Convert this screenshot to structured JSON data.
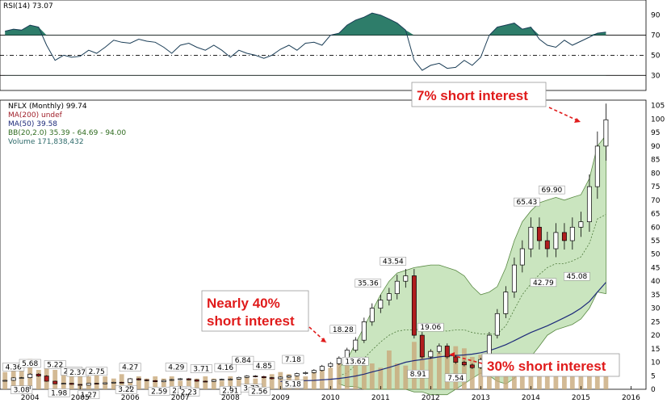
{
  "chart_data": [
    {
      "type": "line",
      "name": "RSI(14)",
      "legend": "RSI(14) 73.07",
      "ylim": [
        15,
        105
      ],
      "yticks": [
        30,
        50,
        70,
        90
      ],
      "reference_lines": [
        30,
        50,
        70
      ],
      "x": [
        2003.5,
        2003.67,
        2003.83,
        2004.0,
        2004.17,
        2004.33,
        2004.5,
        2004.67,
        2004.83,
        2005.0,
        2005.17,
        2005.33,
        2005.5,
        2005.67,
        2005.83,
        2006.0,
        2006.17,
        2006.33,
        2006.5,
        2006.67,
        2006.83,
        2007.0,
        2007.17,
        2007.33,
        2007.5,
        2007.67,
        2007.83,
        2008.0,
        2008.17,
        2008.33,
        2008.5,
        2008.67,
        2008.83,
        2009.0,
        2009.17,
        2009.33,
        2009.5,
        2009.67,
        2009.83,
        2010.0,
        2010.17,
        2010.33,
        2010.5,
        2010.67,
        2010.83,
        2011.0,
        2011.17,
        2011.33,
        2011.5,
        2011.67,
        2011.83,
        2012.0,
        2012.17,
        2012.33,
        2012.5,
        2012.67,
        2012.83,
        2013.0,
        2013.17,
        2013.33,
        2013.5,
        2013.67,
        2013.83,
        2014.0,
        2014.17,
        2014.33,
        2014.5,
        2014.67,
        2014.83,
        2015.0,
        2015.17,
        2015.33,
        2015.5
      ],
      "values": [
        74,
        76,
        75,
        80,
        78,
        60,
        45,
        50,
        48,
        49,
        55,
        52,
        58,
        65,
        63,
        62,
        66,
        64,
        63,
        58,
        52,
        60,
        62,
        58,
        55,
        60,
        55,
        48,
        55,
        52,
        50,
        47,
        50,
        56,
        60,
        55,
        62,
        63,
        60,
        70,
        72,
        80,
        85,
        88,
        92,
        90,
        86,
        82,
        75,
        45,
        35,
        40,
        42,
        37,
        38,
        45,
        40,
        48,
        70,
        78,
        80,
        82,
        76,
        78,
        66,
        60,
        58,
        65,
        60,
        64,
        68,
        72,
        73.07
      ]
    },
    {
      "type": "bar",
      "name": "NFLX (Monthly)",
      "legend": [
        "NFLX (Monthly) 99.74",
        "MA(200) undef",
        "MA(50) 39.58",
        "BB(20,2.0) 35.39 - 64.69 - 94.00",
        "Volume 171,838,432"
      ],
      "ylim": [
        0,
        107
      ],
      "yticks": [
        0,
        5,
        10,
        15,
        20,
        25,
        30,
        35,
        40,
        45,
        50,
        55,
        60,
        65,
        70,
        75,
        80,
        85,
        90,
        95,
        100,
        105
      ],
      "xlabels": [
        "2004",
        "2005",
        "2006",
        "2007",
        "2008",
        "2009",
        "2010",
        "2011",
        "2012",
        "2013",
        "2014",
        "2015",
        "2016"
      ],
      "xlabel_values": [
        2004,
        2005,
        2006,
        2007,
        2008,
        2009,
        2010,
        2011,
        2012,
        2013,
        2014,
        2015,
        2016
      ],
      "price_x": [
        2003.5,
        2003.67,
        2003.83,
        2004.0,
        2004.17,
        2004.33,
        2004.5,
        2004.67,
        2004.83,
        2005.0,
        2005.17,
        2005.33,
        2005.5,
        2005.67,
        2005.83,
        2006.0,
        2006.17,
        2006.33,
        2006.5,
        2006.67,
        2006.83,
        2007.0,
        2007.17,
        2007.33,
        2007.5,
        2007.67,
        2007.83,
        2008.0,
        2008.17,
        2008.33,
        2008.5,
        2008.67,
        2008.83,
        2009.0,
        2009.17,
        2009.33,
        2009.5,
        2009.67,
        2009.83,
        2010.0,
        2010.17,
        2010.33,
        2010.5,
        2010.67,
        2010.83,
        2011.0,
        2011.17,
        2011.33,
        2011.5,
        2011.67,
        2011.83,
        2012.0,
        2012.17,
        2012.33,
        2012.5,
        2012.67,
        2012.83,
        2013.0,
        2013.17,
        2013.33,
        2013.5,
        2013.67,
        2013.83,
        2014.0,
        2014.17,
        2014.33,
        2014.5,
        2014.67,
        2014.83,
        2015.0,
        2015.17,
        2015.33,
        2015.5
      ],
      "price_values": [
        3.3,
        4.2,
        4.3,
        5.6,
        4.9,
        3.0,
        2.0,
        2.2,
        1.8,
        1.5,
        2.2,
        2.0,
        2.4,
        2.6,
        2.5,
        3.9,
        3.5,
        3.2,
        2.8,
        3.3,
        3.6,
        3.9,
        3.5,
        3.0,
        2.9,
        3.5,
        3.7,
        3.8,
        4.4,
        4.9,
        4.7,
        4.3,
        3.9,
        4.5,
        5.0,
        5.8,
        6.2,
        7.0,
        8.5,
        9.5,
        11.5,
        14.5,
        18.2,
        25,
        30,
        33,
        35.4,
        40,
        42,
        20,
        12,
        14,
        16,
        12,
        10,
        9,
        8,
        11,
        20,
        28,
        36,
        46,
        52,
        60,
        55,
        52,
        58,
        55,
        60,
        62,
        75,
        90,
        99.74
      ],
      "volume": [
        8,
        12,
        10,
        14,
        9,
        10,
        9,
        7,
        8,
        9,
        6,
        7,
        6,
        5,
        7,
        5,
        6,
        5,
        6,
        5,
        6,
        4,
        5,
        5,
        6,
        5,
        4,
        6,
        5,
        6,
        5,
        6,
        7,
        8,
        7,
        6,
        6,
        8,
        9,
        10,
        12,
        14,
        13,
        11,
        12,
        10,
        18,
        12,
        11,
        22,
        21,
        18,
        17,
        19,
        20,
        19,
        15,
        16,
        21,
        16,
        13,
        15,
        12,
        13,
        11,
        12,
        10,
        11,
        13,
        12,
        10,
        11,
        9
      ],
      "ma50": [
        null,
        null,
        null,
        null,
        null,
        null,
        null,
        null,
        null,
        null,
        null,
        null,
        null,
        null,
        null,
        null,
        null,
        null,
        null,
        null,
        null,
        null,
        null,
        null,
        null,
        null,
        null,
        null,
        null,
        null,
        null,
        null,
        null,
        2.9,
        3.0,
        3.1,
        3.2,
        3.3,
        3.5,
        3.7,
        4.0,
        4.4,
        4.9,
        5.6,
        6.4,
        7.2,
        8.1,
        9.0,
        10.0,
        10.6,
        11.0,
        11.5,
        12.0,
        12.3,
        12.5,
        12.7,
        13.0,
        13.5,
        14.3,
        15.3,
        16.5,
        18.0,
        19.5,
        21.0,
        22.3,
        23.5,
        25.0,
        26.5,
        28.0,
        30.0,
        32.5,
        36.0,
        39.58
      ],
      "bb_upper": [
        null,
        null,
        null,
        null,
        null,
        null,
        null,
        null,
        null,
        null,
        null,
        null,
        null,
        null,
        null,
        null,
        null,
        null,
        null,
        null,
        null,
        null,
        null,
        null,
        null,
        null,
        null,
        null,
        null,
        null,
        null,
        null,
        null,
        null,
        null,
        null,
        null,
        null,
        null,
        null,
        8,
        11,
        17,
        23,
        29,
        35,
        40,
        43,
        44,
        45,
        45.5,
        46,
        46,
        45,
        44,
        42,
        38,
        35,
        36,
        38,
        45,
        55,
        62,
        66,
        69,
        70,
        71,
        70,
        71,
        72,
        78,
        90,
        94
      ],
      "bb_lower": [
        null,
        null,
        null,
        null,
        null,
        null,
        null,
        null,
        null,
        null,
        null,
        null,
        null,
        null,
        null,
        null,
        null,
        null,
        null,
        null,
        null,
        null,
        null,
        null,
        null,
        null,
        null,
        null,
        null,
        null,
        null,
        null,
        null,
        null,
        null,
        null,
        null,
        null,
        null,
        null,
        2,
        1,
        1,
        0,
        0,
        0,
        0,
        0,
        0,
        -1,
        -1,
        -2,
        -2,
        -2,
        0,
        2,
        4,
        6,
        5,
        3,
        2,
        4,
        8,
        12,
        16,
        20,
        22,
        23,
        24,
        26,
        30,
        36,
        35.39
      ],
      "price_labels": [
        {
          "x": 2003.67,
          "y": 4.36,
          "text": "4.36"
        },
        {
          "x": 2003.83,
          "y": 3.08,
          "text": "3.08"
        },
        {
          "x": 2004.0,
          "y": 5.68,
          "text": "5.68"
        },
        {
          "x": 2004.5,
          "y": 5.22,
          "text": "5.22"
        },
        {
          "x": 2004.58,
          "y": 1.98,
          "text": "1.98"
        },
        {
          "x": 2004.83,
          "y": 2.8,
          "text": "2.80"
        },
        {
          "x": 2004.95,
          "y": 2.37,
          "text": "2.37"
        },
        {
          "x": 2005.17,
          "y": 1.27,
          "text": "1.27"
        },
        {
          "x": 2005.33,
          "y": 2.75,
          "text": "2.75"
        },
        {
          "x": 2005.92,
          "y": 3.22,
          "text": "3.22"
        },
        {
          "x": 2006.0,
          "y": 4.27,
          "text": "4.27"
        },
        {
          "x": 2006.58,
          "y": 2.59,
          "text": "2.59"
        },
        {
          "x": 2006.92,
          "y": 4.29,
          "text": "4.29"
        },
        {
          "x": 2007.0,
          "y": 2.9,
          "text": "2.90"
        },
        {
          "x": 2007.17,
          "y": 2.23,
          "text": "2.23"
        },
        {
          "x": 2007.42,
          "y": 3.71,
          "text": "3.71"
        },
        {
          "x": 2007.9,
          "y": 4.16,
          "text": "4.16"
        },
        {
          "x": 2008.0,
          "y": 2.91,
          "text": "2.91"
        },
        {
          "x": 2008.25,
          "y": 6.84,
          "text": "6.84"
        },
        {
          "x": 2008.42,
          "y": 3.72,
          "text": "3.72"
        },
        {
          "x": 2008.58,
          "y": 2.56,
          "text": "2.56"
        },
        {
          "x": 2008.67,
          "y": 4.85,
          "text": "4.85"
        },
        {
          "x": 2009.25,
          "y": 7.18,
          "text": "7.18"
        },
        {
          "x": 2009.25,
          "y": 5.18,
          "text": "5.18"
        },
        {
          "x": 2010.25,
          "y": 18.28,
          "text": "18.28"
        },
        {
          "x": 2010.5,
          "y": 13.62,
          "text": "13.62"
        },
        {
          "x": 2010.75,
          "y": 35.36,
          "text": "35.36"
        },
        {
          "x": 2011.25,
          "y": 43.54,
          "text": "43.54"
        },
        {
          "x": 2011.75,
          "y": 8.91,
          "text": "8.91"
        },
        {
          "x": 2012.0,
          "y": 19.06,
          "text": "19.06"
        },
        {
          "x": 2012.5,
          "y": 7.54,
          "text": "7.54"
        },
        {
          "x": 2013.92,
          "y": 65.43,
          "text": "65.43"
        },
        {
          "x": 2014.25,
          "y": 42.79,
          "text": "42.79"
        },
        {
          "x": 2014.42,
          "y": 69.9,
          "text": "69.90"
        },
        {
          "x": 2014.92,
          "y": 45.08,
          "text": "45.08"
        }
      ]
    }
  ],
  "annotations": {
    "nearly40_line1": "Nearly 40%",
    "nearly40_line2": "short interest",
    "short7": "7% short interest",
    "short30": "30% short interest"
  },
  "colors": {
    "up_candle": "#ffffff",
    "down_candle": "#b01e1e",
    "bb_fill": "#9fd08a",
    "ma50": "#1d2a7a",
    "rsi_fill": "#2e7d6a",
    "volume": "#c8a97a",
    "callout": "#e01b1b"
  }
}
